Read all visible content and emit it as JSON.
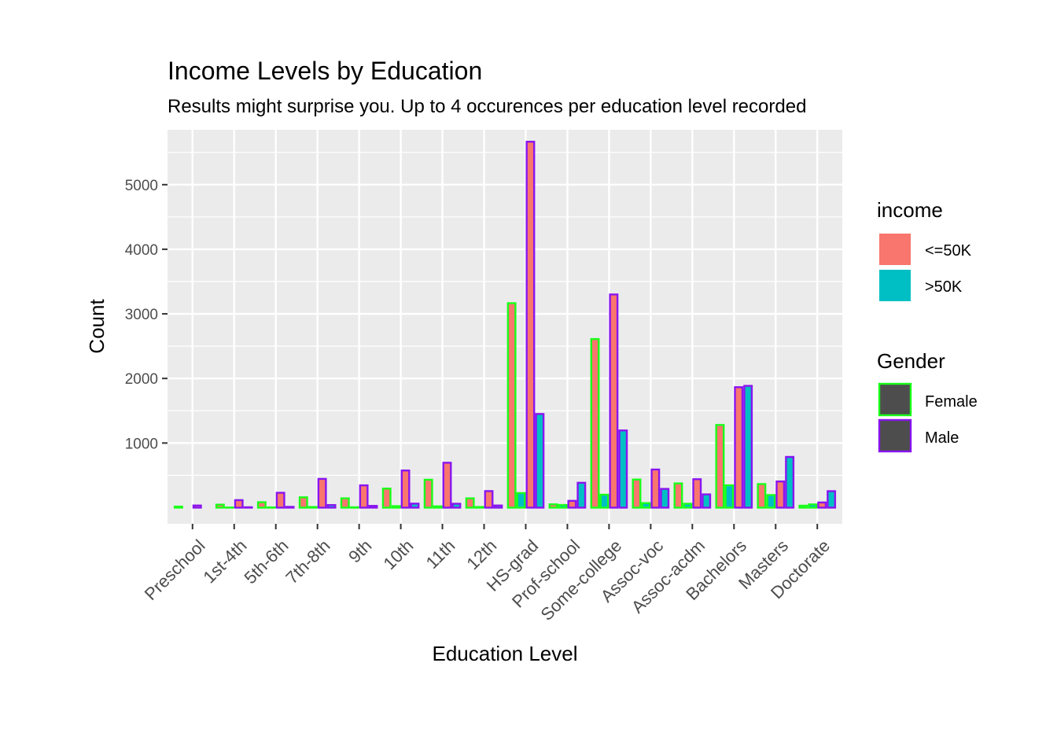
{
  "chart_data": {
    "type": "bar",
    "title": "Income Levels by Education",
    "subtitle": "Results might surprise you. Up to 4 occurences per education level recorded",
    "xlabel": "Education Level",
    "ylabel": "Count",
    "ylim": [
      -250,
      5850
    ],
    "yticks": [
      1000,
      2000,
      3000,
      4000,
      5000
    ],
    "grid": true,
    "legend_position": "right",
    "categories": [
      "Preschool",
      "1st-4th",
      "5th-6th",
      "7th-8th",
      "9th",
      "10th",
      "11th",
      "12th",
      "HS-grad",
      "Prof-school",
      "Some-college",
      "Assoc-voc",
      "Assoc-acdm",
      "Bachelors",
      "Masters",
      "Doctorate"
    ],
    "series": [
      {
        "income": "<=50K",
        "gender": "Female",
        "values": [
          16,
          46,
          84,
          160,
          144,
          295,
          432,
          144,
          3165,
          51,
          2610,
          435,
          375,
          1280,
          365,
          30
        ]
      },
      {
        "income": ">50K",
        "gender": "Female",
        "values": [
          0,
          2,
          4,
          10,
          6,
          23,
          20,
          10,
          225,
          41,
          200,
          70,
          60,
          345,
          195,
          50
        ]
      },
      {
        "income": "<=50K",
        "gender": "Male",
        "values": [
          33,
          116,
          230,
          445,
          345,
          575,
          695,
          256,
          5665,
          105,
          3300,
          590,
          440,
          1865,
          405,
          80
        ]
      },
      {
        "income": ">50K",
        "gender": "Male",
        "values": [
          0,
          6,
          12,
          40,
          27,
          62,
          60,
          33,
          1450,
          385,
          1195,
          290,
          205,
          1885,
          785,
          255
        ]
      }
    ],
    "legend": {
      "fill_title": "income",
      "fill_items": [
        {
          "label": "<=50K",
          "color": "#F8766D"
        },
        {
          "label": ">50K",
          "color": "#00BFC4"
        }
      ],
      "color_title": "Gender",
      "color_items": [
        {
          "label": "Female",
          "color": "#19FF19"
        },
        {
          "label": "Male",
          "color": "#8A14F0"
        }
      ]
    },
    "colors": {
      "panel_bg": "#EBEBEB",
      "grid": "#FFFFFF",
      "legend_key_fill": "#4D4D4D"
    }
  }
}
